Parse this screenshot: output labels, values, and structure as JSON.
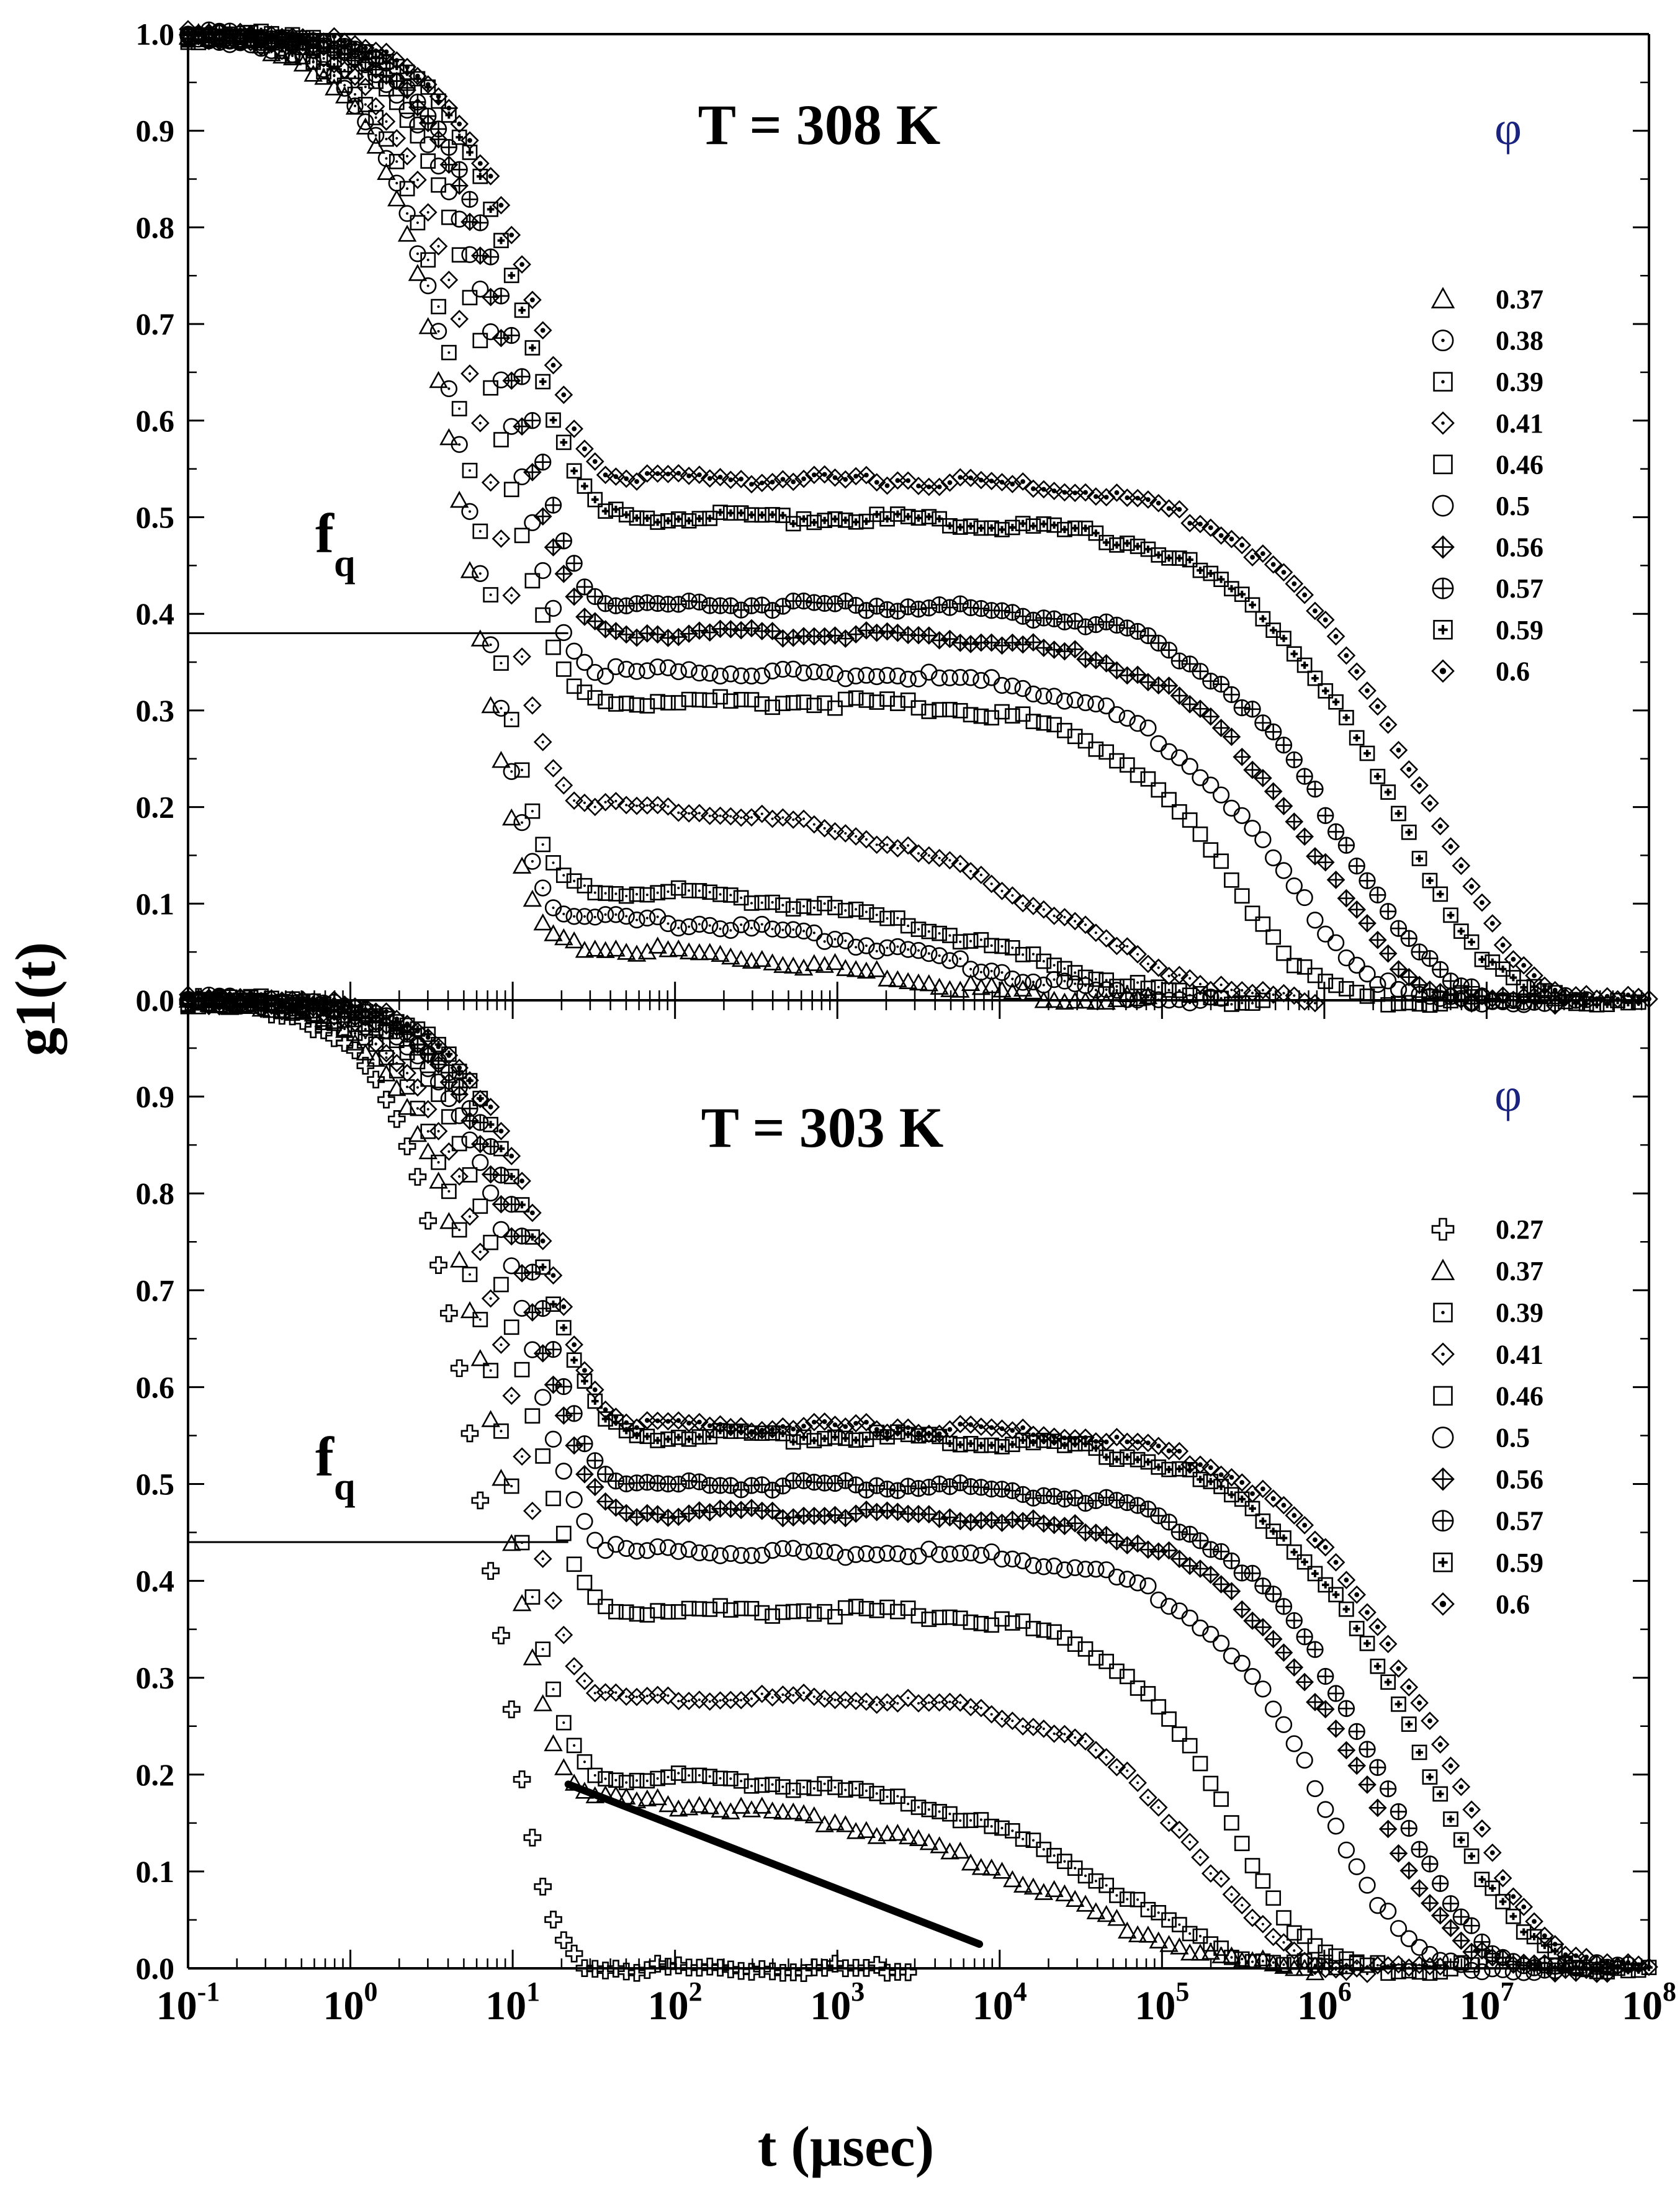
{
  "chart_data": {
    "type": "scatter",
    "x_scale": "log",
    "xlim": [
      0.1,
      100000000
    ],
    "xlabel": "t (μsec)",
    "ylabel": "g1(t)",
    "x_ticks": [
      "10-1",
      "100",
      "101",
      "102",
      "103",
      "104",
      "105",
      "106",
      "107",
      "108"
    ],
    "panels": [
      {
        "title": "T = 308 K",
        "legend_title": "φ",
        "fq_label": "f",
        "fq_sub": "q",
        "fq_value": 0.38,
        "ylim": [
          0.0,
          1.0
        ],
        "y_ticks": [
          "1.0",
          "0.9",
          "0.8",
          "0.7",
          "0.6",
          "0.5",
          "0.4",
          "0.3",
          "0.2",
          "0.1",
          "0.0"
        ],
        "series": [
          {
            "name": "0.37",
            "marker": "triangle",
            "tau0": 6.0,
            "plateau": 0.06,
            "tau_alpha": 3000,
            "beta_alpha": 0.5
          },
          {
            "name": "0.38",
            "marker": "circle-dot",
            "tau0": 6.5,
            "plateau": 0.09,
            "tau_alpha": 8000,
            "beta_alpha": 0.5
          },
          {
            "name": "0.39",
            "marker": "square-dot",
            "tau0": 7.0,
            "plateau": 0.12,
            "tau_alpha": 15000,
            "beta_alpha": 0.5
          },
          {
            "name": "0.41",
            "marker": "diamond-dot",
            "tau0": 8.0,
            "plateau": 0.21,
            "tau_alpha": 30000,
            "beta_alpha": 0.5
          },
          {
            "name": "0.46",
            "marker": "square",
            "tau0": 9.0,
            "plateau": 0.31,
            "tau_alpha": 300000,
            "beta_alpha": 0.9
          },
          {
            "name": "0.5",
            "marker": "circle",
            "tau0": 10.0,
            "plateau": 0.34,
            "tau_alpha": 600000,
            "beta_alpha": 0.8
          },
          {
            "name": "0.56",
            "marker": "diamond-cross",
            "tau0": 11.0,
            "plateau": 0.38,
            "tau_alpha": 1000000,
            "beta_alpha": 0.8
          },
          {
            "name": "0.57",
            "marker": "circle-cross",
            "tau0": 12.0,
            "plateau": 0.41,
            "tau_alpha": 1500000,
            "beta_alpha": 0.8
          },
          {
            "name": "0.59",
            "marker": "square-star",
            "tau0": 13.0,
            "plateau": 0.5,
            "tau_alpha": 3000000,
            "beta_alpha": 0.75
          },
          {
            "name": "0.6",
            "marker": "diamond-star",
            "tau0": 14.0,
            "plateau": 0.54,
            "tau_alpha": 4500000,
            "beta_alpha": 0.75
          }
        ]
      },
      {
        "title": "T = 303 K",
        "legend_title": "φ",
        "fq_label": "f",
        "fq_sub": "q",
        "fq_value": 0.44,
        "ylim": [
          0.0,
          1.0
        ],
        "y_ticks": [
          "0.9",
          "0.8",
          "0.7",
          "0.6",
          "0.5",
          "0.4",
          "0.3",
          "0.2",
          "0.1",
          "0.0"
        ],
        "line_fit": {
          "x": [
            22,
            7500
          ],
          "y": [
            0.19,
            0.025
          ]
        },
        "series": [
          {
            "name": "0.27",
            "marker": "plus",
            "tau0": 8.0,
            "plateau": 0.0,
            "tau_alpha": 100,
            "beta_alpha": 1.0
          },
          {
            "name": "0.37",
            "marker": "triangle",
            "tau0": 9.0,
            "plateau": 0.18,
            "tau_alpha": 30000,
            "beta_alpha": 0.5
          },
          {
            "name": "0.39",
            "marker": "square-dot",
            "tau0": 10.0,
            "plateau": 0.2,
            "tau_alpha": 60000,
            "beta_alpha": 0.6
          },
          {
            "name": "0.41",
            "marker": "diamond-dot",
            "tau0": 11.0,
            "plateau": 0.28,
            "tau_alpha": 200000,
            "beta_alpha": 0.9
          },
          {
            "name": "0.46",
            "marker": "square",
            "tau0": 12.0,
            "plateau": 0.37,
            "tau_alpha": 300000,
            "beta_alpha": 1.0
          },
          {
            "name": "0.5",
            "marker": "circle",
            "tau0": 13.0,
            "plateau": 0.43,
            "tau_alpha": 1100000,
            "beta_alpha": 0.9
          },
          {
            "name": "0.56",
            "marker": "diamond-cross",
            "tau0": 14.0,
            "plateau": 0.47,
            "tau_alpha": 2000000,
            "beta_alpha": 0.8
          },
          {
            "name": "0.57",
            "marker": "circle-cross",
            "tau0": 15.0,
            "plateau": 0.5,
            "tau_alpha": 2500000,
            "beta_alpha": 0.8
          },
          {
            "name": "0.59",
            "marker": "square-star",
            "tau0": 16.0,
            "plateau": 0.55,
            "tau_alpha": 4500000,
            "beta_alpha": 0.75
          },
          {
            "name": "0.6",
            "marker": "diamond-star",
            "tau0": 17.0,
            "plateau": 0.56,
            "tau_alpha": 6000000,
            "beta_alpha": 0.75
          }
        ]
      }
    ]
  }
}
